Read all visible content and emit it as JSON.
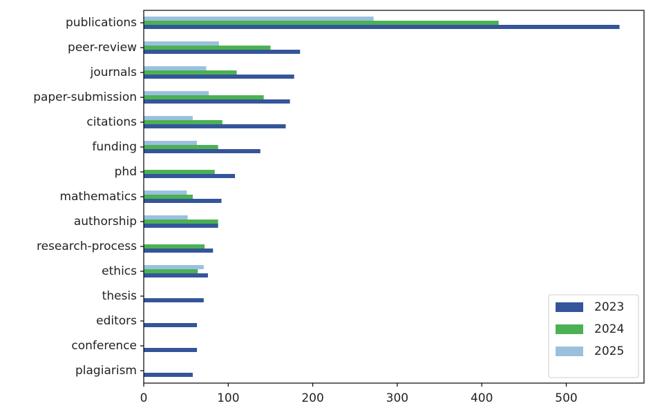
{
  "chart_data": {
    "type": "barh",
    "categories": [
      "publications",
      "peer-review",
      "journals",
      "paper-submission",
      "citations",
      "funding",
      "phd",
      "mathematics",
      "authorship",
      "research-process",
      "ethics",
      "thesis",
      "editors",
      "conference",
      "plagiarism"
    ],
    "series": [
      {
        "name": "2023",
        "color": "#34559a",
        "values": [
          563,
          185,
          178,
          173,
          168,
          138,
          108,
          92,
          88,
          82,
          76,
          71,
          63,
          63,
          58
        ]
      },
      {
        "name": "2024",
        "color": "#4bb153",
        "values": [
          420,
          150,
          110,
          142,
          93,
          88,
          84,
          58,
          88,
          72,
          64,
          null,
          null,
          null,
          null
        ]
      },
      {
        "name": "2025",
        "color": "#9ac0de",
        "values": [
          272,
          89,
          74,
          77,
          58,
          63,
          null,
          51,
          52,
          null,
          71,
          null,
          null,
          null,
          null
        ]
      }
    ],
    "xlim": [
      0,
      592
    ],
    "xticks": [
      0,
      100,
      200,
      300,
      400,
      500
    ],
    "legend": "lower right"
  }
}
